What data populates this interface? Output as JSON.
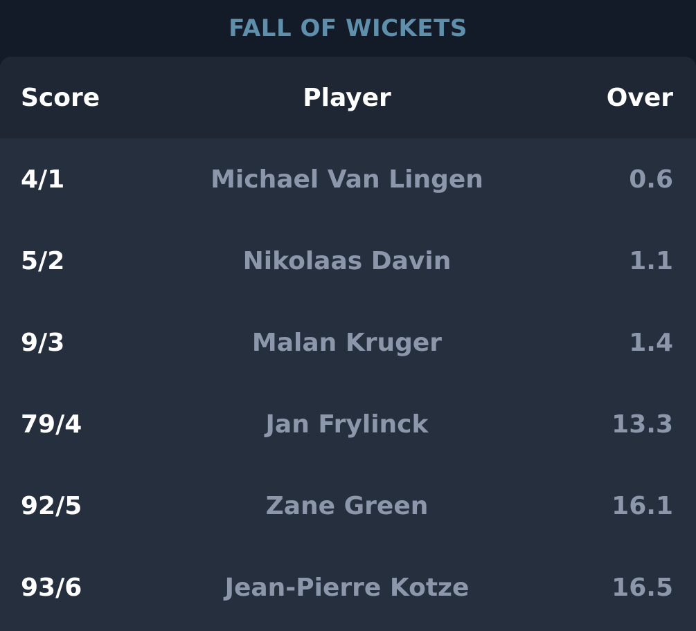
{
  "title": "FALL OF WICKETS",
  "table": {
    "headers": {
      "score": "Score",
      "player": "Player",
      "over": "Over"
    },
    "rows": [
      {
        "score": "4/1",
        "player": "Michael Van Lingen",
        "over": "0.6"
      },
      {
        "score": "5/2",
        "player": "Nikolaas Davin",
        "over": "1.1"
      },
      {
        "score": "9/3",
        "player": "Malan Kruger",
        "over": "1.4"
      },
      {
        "score": "79/4",
        "player": "Jan Frylinck",
        "over": "13.3"
      },
      {
        "score": "92/5",
        "player": "Zane Green",
        "over": "16.1"
      },
      {
        "score": "93/6",
        "player": "Jean-Pierre Kotze",
        "over": "16.5"
      }
    ]
  },
  "colors": {
    "background": "#141b29",
    "card": "#262f3d",
    "header_bg": "#1f2735",
    "title": "#5f8fab",
    "muted_text": "#8c97ab",
    "primary_text": "#ffffff"
  }
}
